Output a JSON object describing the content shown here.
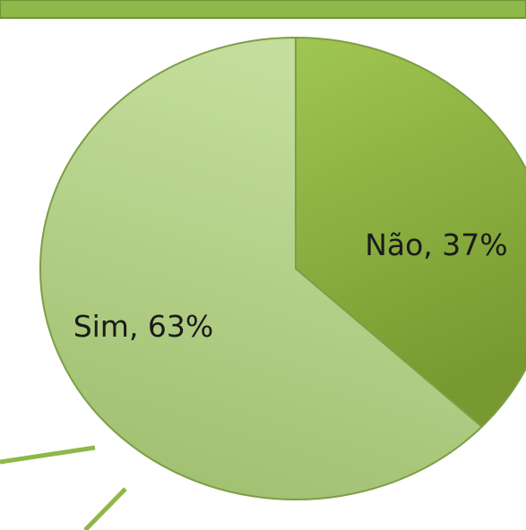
{
  "chart_data": {
    "type": "pie",
    "categories": [
      "Não",
      "Sim"
    ],
    "values": [
      37,
      63
    ],
    "value_labels": [
      "Não, 37%",
      "Sim, 63%"
    ],
    "colors": [
      "#8cb242",
      "#b4d28a"
    ]
  }
}
